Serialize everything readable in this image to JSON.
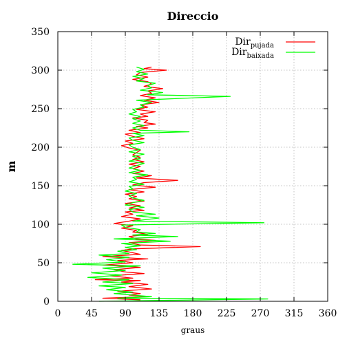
{
  "chart_data": {
    "type": "line",
    "title": "Direccio",
    "xlabel": "graus",
    "ylabel": "m",
    "xlim": [
      0,
      360
    ],
    "ylim": [
      0,
      350
    ],
    "xticks": [
      "0",
      "45",
      "90",
      "135",
      "180",
      "225",
      "270",
      "315",
      "360"
    ],
    "yticks": [
      "0",
      "50",
      "100",
      "150",
      "200",
      "250",
      "300",
      "350"
    ],
    "grid": true,
    "legend_position": "top-right",
    "series": [
      {
        "name": "Dir",
        "name_sub": "pujada",
        "color": "#ff0000",
        "points": [
          [
            110,
            2
          ],
          [
            60,
            4
          ],
          [
            120,
            6
          ],
          [
            95,
            8
          ],
          [
            110,
            10
          ],
          [
            80,
            13
          ],
          [
            125,
            16
          ],
          [
            95,
            19
          ],
          [
            120,
            22
          ],
          [
            85,
            25
          ],
          [
            110,
            27
          ],
          [
            50,
            28
          ],
          [
            100,
            30
          ],
          [
            70,
            33
          ],
          [
            115,
            36
          ],
          [
            90,
            38
          ],
          [
            75,
            41
          ],
          [
            110,
            44
          ],
          [
            60,
            47
          ],
          [
            100,
            50
          ],
          [
            80,
            53
          ],
          [
            120,
            55
          ],
          [
            60,
            58
          ],
          [
            110,
            61
          ],
          [
            95,
            64
          ],
          [
            85,
            66
          ],
          [
            100,
            68
          ],
          [
            190,
            71
          ],
          [
            110,
            73
          ],
          [
            95,
            76
          ],
          [
            130,
            79
          ],
          [
            105,
            81
          ],
          [
            95,
            84
          ],
          [
            120,
            87
          ],
          [
            100,
            90
          ],
          [
            105,
            92
          ],
          [
            85,
            95
          ],
          [
            100,
            98
          ],
          [
            75,
            101
          ],
          [
            95,
            104
          ],
          [
            110,
            107
          ],
          [
            85,
            110
          ],
          [
            100,
            113
          ],
          [
            90,
            116
          ],
          [
            115,
            118
          ],
          [
            95,
            121
          ],
          [
            110,
            124
          ],
          [
            90,
            127
          ],
          [
            115,
            130
          ],
          [
            95,
            133
          ],
          [
            105,
            136
          ],
          [
            90,
            139
          ],
          [
            115,
            142
          ],
          [
            95,
            145
          ],
          [
            130,
            148
          ],
          [
            100,
            151
          ],
          [
            115,
            154
          ],
          [
            160,
            157
          ],
          [
            105,
            160
          ],
          [
            125,
            163
          ],
          [
            100,
            166
          ],
          [
            115,
            169
          ],
          [
            100,
            172
          ],
          [
            110,
            175
          ],
          [
            95,
            178
          ],
          [
            115,
            181
          ],
          [
            100,
            184
          ],
          [
            110,
            187
          ],
          [
            100,
            190
          ],
          [
            105,
            193
          ],
          [
            110,
            196
          ],
          [
            95,
            199
          ],
          [
            85,
            202
          ],
          [
            100,
            205
          ],
          [
            90,
            208
          ],
          [
            115,
            211
          ],
          [
            100,
            214
          ],
          [
            90,
            217
          ],
          [
            110,
            219
          ],
          [
            95,
            222
          ],
          [
            120,
            225
          ],
          [
            105,
            227
          ],
          [
            130,
            230
          ],
          [
            115,
            232
          ],
          [
            120,
            235
          ],
          [
            100,
            238
          ],
          [
            120,
            240
          ],
          [
            110,
            243
          ],
          [
            130,
            246
          ],
          [
            105,
            249
          ],
          [
            120,
            252
          ],
          [
            110,
            255
          ],
          [
            135,
            258
          ],
          [
            115,
            261
          ],
          [
            130,
            264
          ],
          [
            110,
            267
          ],
          [
            125,
            270
          ],
          [
            120,
            273
          ],
          [
            140,
            276
          ],
          [
            115,
            279
          ],
          [
            125,
            282
          ],
          [
            120,
            285
          ],
          [
            100,
            288
          ],
          [
            120,
            291
          ],
          [
            105,
            294
          ],
          [
            110,
            297
          ],
          [
            145,
            300
          ],
          [
            115,
            302
          ],
          [
            125,
            304
          ]
        ]
      },
      {
        "name": "Dir",
        "name_sub": "baixada",
        "color": "#00ff00",
        "points": [
          [
            55,
            0
          ],
          [
            280,
            3
          ],
          [
            80,
            4
          ],
          [
            125,
            6
          ],
          [
            100,
            8
          ],
          [
            75,
            10
          ],
          [
            100,
            12
          ],
          [
            65,
            15
          ],
          [
            90,
            18
          ],
          [
            55,
            20
          ],
          [
            100,
            23
          ],
          [
            60,
            25
          ],
          [
            95,
            28
          ],
          [
            40,
            31
          ],
          [
            85,
            34
          ],
          [
            45,
            37
          ],
          [
            90,
            40
          ],
          [
            60,
            43
          ],
          [
            110,
            46
          ],
          [
            20,
            48
          ],
          [
            90,
            51
          ],
          [
            65,
            54
          ],
          [
            95,
            57
          ],
          [
            55,
            60
          ],
          [
            95,
            62
          ],
          [
            80,
            65
          ],
          [
            105,
            67
          ],
          [
            90,
            70
          ],
          [
            110,
            72
          ],
          [
            85,
            75
          ],
          [
            150,
            78
          ],
          [
            75,
            81
          ],
          [
            160,
            84
          ],
          [
            100,
            86
          ],
          [
            130,
            88
          ],
          [
            105,
            90
          ],
          [
            110,
            93
          ],
          [
            90,
            96
          ],
          [
            85,
            99
          ],
          [
            275,
            102
          ],
          [
            100,
            104
          ],
          [
            135,
            108
          ],
          [
            105,
            111
          ],
          [
            130,
            113
          ],
          [
            100,
            116
          ],
          [
            95,
            119
          ],
          [
            115,
            122
          ],
          [
            90,
            125
          ],
          [
            100,
            128
          ],
          [
            115,
            131
          ],
          [
            100,
            134
          ],
          [
            95,
            137
          ],
          [
            105,
            140
          ],
          [
            90,
            143
          ],
          [
            100,
            146
          ],
          [
            95,
            149
          ],
          [
            115,
            152
          ],
          [
            95,
            155
          ],
          [
            105,
            158
          ],
          [
            100,
            161
          ],
          [
            120,
            164
          ],
          [
            95,
            167
          ],
          [
            110,
            170
          ],
          [
            95,
            173
          ],
          [
            105,
            176
          ],
          [
            115,
            179
          ],
          [
            95,
            182
          ],
          [
            110,
            185
          ],
          [
            100,
            188
          ],
          [
            115,
            191
          ],
          [
            95,
            194
          ],
          [
            110,
            197
          ],
          [
            100,
            200
          ],
          [
            95,
            203
          ],
          [
            115,
            206
          ],
          [
            100,
            209
          ],
          [
            95,
            212
          ],
          [
            115,
            215
          ],
          [
            100,
            218
          ],
          [
            175,
            220
          ],
          [
            110,
            222
          ],
          [
            100,
            225
          ],
          [
            115,
            228
          ],
          [
            100,
            231
          ],
          [
            110,
            234
          ],
          [
            100,
            237
          ],
          [
            110,
            240
          ],
          [
            95,
            243
          ],
          [
            105,
            246
          ],
          [
            100,
            249
          ],
          [
            115,
            252
          ],
          [
            110,
            255
          ],
          [
            125,
            258
          ],
          [
            105,
            261
          ],
          [
            230,
            266
          ],
          [
            120,
            268
          ],
          [
            140,
            271
          ],
          [
            110,
            274
          ],
          [
            125,
            277
          ],
          [
            120,
            280
          ],
          [
            130,
            283
          ],
          [
            105,
            286
          ],
          [
            115,
            289
          ],
          [
            100,
            292
          ],
          [
            120,
            295
          ],
          [
            105,
            298
          ],
          [
            115,
            301
          ],
          [
            105,
            304
          ]
        ]
      }
    ]
  }
}
